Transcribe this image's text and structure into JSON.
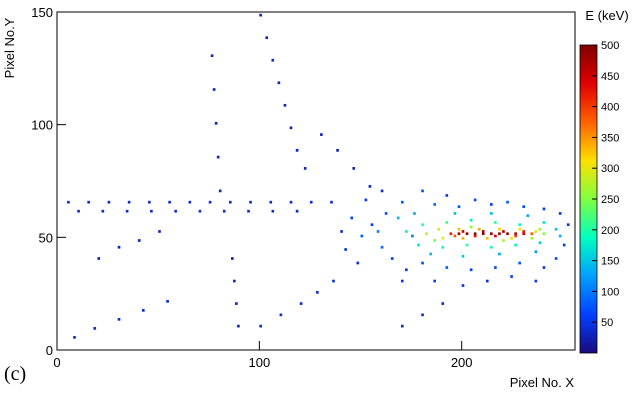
{
  "chart_data": {
    "type": "heatmap",
    "xlabel": "Pixel No. X",
    "ylabel": "Pixel No.Y",
    "colorbar_label": "E (keV)",
    "panel_label": "(c)",
    "xlim": [
      0,
      256
    ],
    "ylim": [
      0,
      150
    ],
    "zlim": [
      0,
      500
    ],
    "xticks": [
      0,
      100,
      200
    ],
    "yticks": [
      0,
      50,
      100,
      150
    ],
    "zticks": [
      50,
      100,
      150,
      200,
      250,
      300,
      350,
      400,
      450,
      500
    ],
    "colors": [
      "#1a0a80",
      "#0040ff",
      "#00a0ff",
      "#00ffc0",
      "#80ff40",
      "#ffe000",
      "#ff6000",
      "#e00000",
      "#800000"
    ],
    "x": [
      194,
      198,
      202,
      206,
      210,
      214,
      218,
      222,
      226,
      230,
      234,
      200,
      210,
      220,
      230,
      196,
      206,
      216,
      226,
      236,
      188,
      198,
      208,
      218,
      228,
      238,
      190,
      200,
      212,
      224,
      234,
      182,
      240,
      204,
      220,
      186,
      180,
      192,
      204,
      216,
      228,
      240,
      246,
      178,
      190,
      202,
      214,
      226,
      238,
      172,
      168,
      176,
      196,
      214,
      232,
      184,
      200,
      218,
      236,
      248,
      150,
      155,
      160,
      162,
      165,
      170,
      172,
      175,
      158,
      145,
      142,
      148,
      152,
      180,
      186,
      192,
      198,
      206,
      214,
      222,
      230,
      240,
      248,
      250,
      252,
      246,
      240,
      228,
      216,
      204,
      192,
      180,
      170,
      186,
      200,
      212,
      224,
      236,
      160,
      140,
      5,
      15,
      25,
      35,
      45,
      55,
      65,
      75,
      85,
      95,
      105,
      115,
      125,
      135,
      10,
      22,
      34,
      46,
      58,
      70,
      82,
      94,
      106,
      118,
      100,
      103,
      106,
      109,
      112,
      115,
      118,
      122,
      76,
      77,
      78,
      79,
      80,
      8,
      18,
      30,
      42,
      54,
      86,
      87,
      88,
      89,
      130,
      138,
      146,
      154,
      120,
      128,
      136,
      100,
      110,
      170,
      180,
      190,
      20,
      30,
      40,
      50
    ],
    "y": [
      51,
      51,
      51,
      51,
      51,
      51,
      51,
      51,
      51,
      51,
      51,
      52,
      52,
      52,
      52,
      50,
      50,
      50,
      50,
      52,
      53,
      53,
      53,
      53,
      53,
      53,
      49,
      49,
      49,
      49,
      49,
      51,
      51,
      54,
      48,
      48,
      55,
      56,
      57,
      56,
      55,
      56,
      53,
      46,
      45,
      46,
      45,
      46,
      47,
      52,
      58,
      60,
      60,
      60,
      59,
      42,
      41,
      42,
      43,
      50,
      50,
      55,
      45,
      60,
      40,
      65,
      35,
      50,
      52,
      58,
      44,
      38,
      66,
      70,
      64,
      68,
      63,
      66,
      64,
      65,
      63,
      62,
      60,
      46,
      55,
      40,
      36,
      38,
      36,
      35,
      36,
      38,
      30,
      30,
      28,
      30,
      32,
      30,
      70,
      52,
      65,
      65,
      65,
      65,
      65,
      65,
      65,
      65,
      65,
      65,
      65,
      65,
      65,
      65,
      61,
      61,
      61,
      61,
      61,
      61,
      61,
      61,
      61,
      61,
      148,
      138,
      128,
      118,
      108,
      98,
      88,
      80,
      130,
      115,
      100,
      85,
      70,
      5,
      9,
      13,
      17,
      21,
      40,
      30,
      20,
      10,
      95,
      88,
      80,
      72,
      20,
      25,
      30,
      10,
      15,
      10,
      15,
      20,
      40,
      45,
      48,
      52
    ],
    "values": [
      420,
      470,
      490,
      500,
      495,
      490,
      485,
      480,
      470,
      440,
      380,
      450,
      480,
      470,
      420,
      380,
      430,
      440,
      400,
      300,
      300,
      330,
      340,
      320,
      310,
      260,
      310,
      340,
      330,
      300,
      270,
      280,
      250,
      260,
      270,
      240,
      200,
      220,
      180,
      210,
      190,
      170,
      150,
      170,
      190,
      210,
      200,
      180,
      160,
      180,
      140,
      130,
      150,
      140,
      130,
      140,
      150,
      130,
      120,
      140,
      80,
      60,
      90,
      70,
      60,
      80,
      50,
      100,
      110,
      60,
      50,
      40,
      50,
      70,
      90,
      60,
      80,
      70,
      60,
      80,
      70,
      60,
      50,
      60,
      50,
      70,
      60,
      80,
      70,
      60,
      80,
      70,
      50,
      60,
      50,
      40,
      60,
      50,
      40,
      40,
      40,
      40,
      40,
      40,
      40,
      40,
      40,
      40,
      40,
      40,
      40,
      40,
      40,
      40,
      40,
      40,
      40,
      40,
      40,
      40,
      40,
      40,
      40,
      40,
      30,
      30,
      30,
      30,
      30,
      30,
      30,
      30,
      30,
      30,
      30,
      30,
      30,
      40,
      40,
      40,
      40,
      40,
      30,
      30,
      30,
      30,
      30,
      30,
      30,
      30,
      40,
      40,
      40,
      40,
      40,
      40,
      40,
      40,
      30,
      30,
      30,
      30
    ]
  }
}
